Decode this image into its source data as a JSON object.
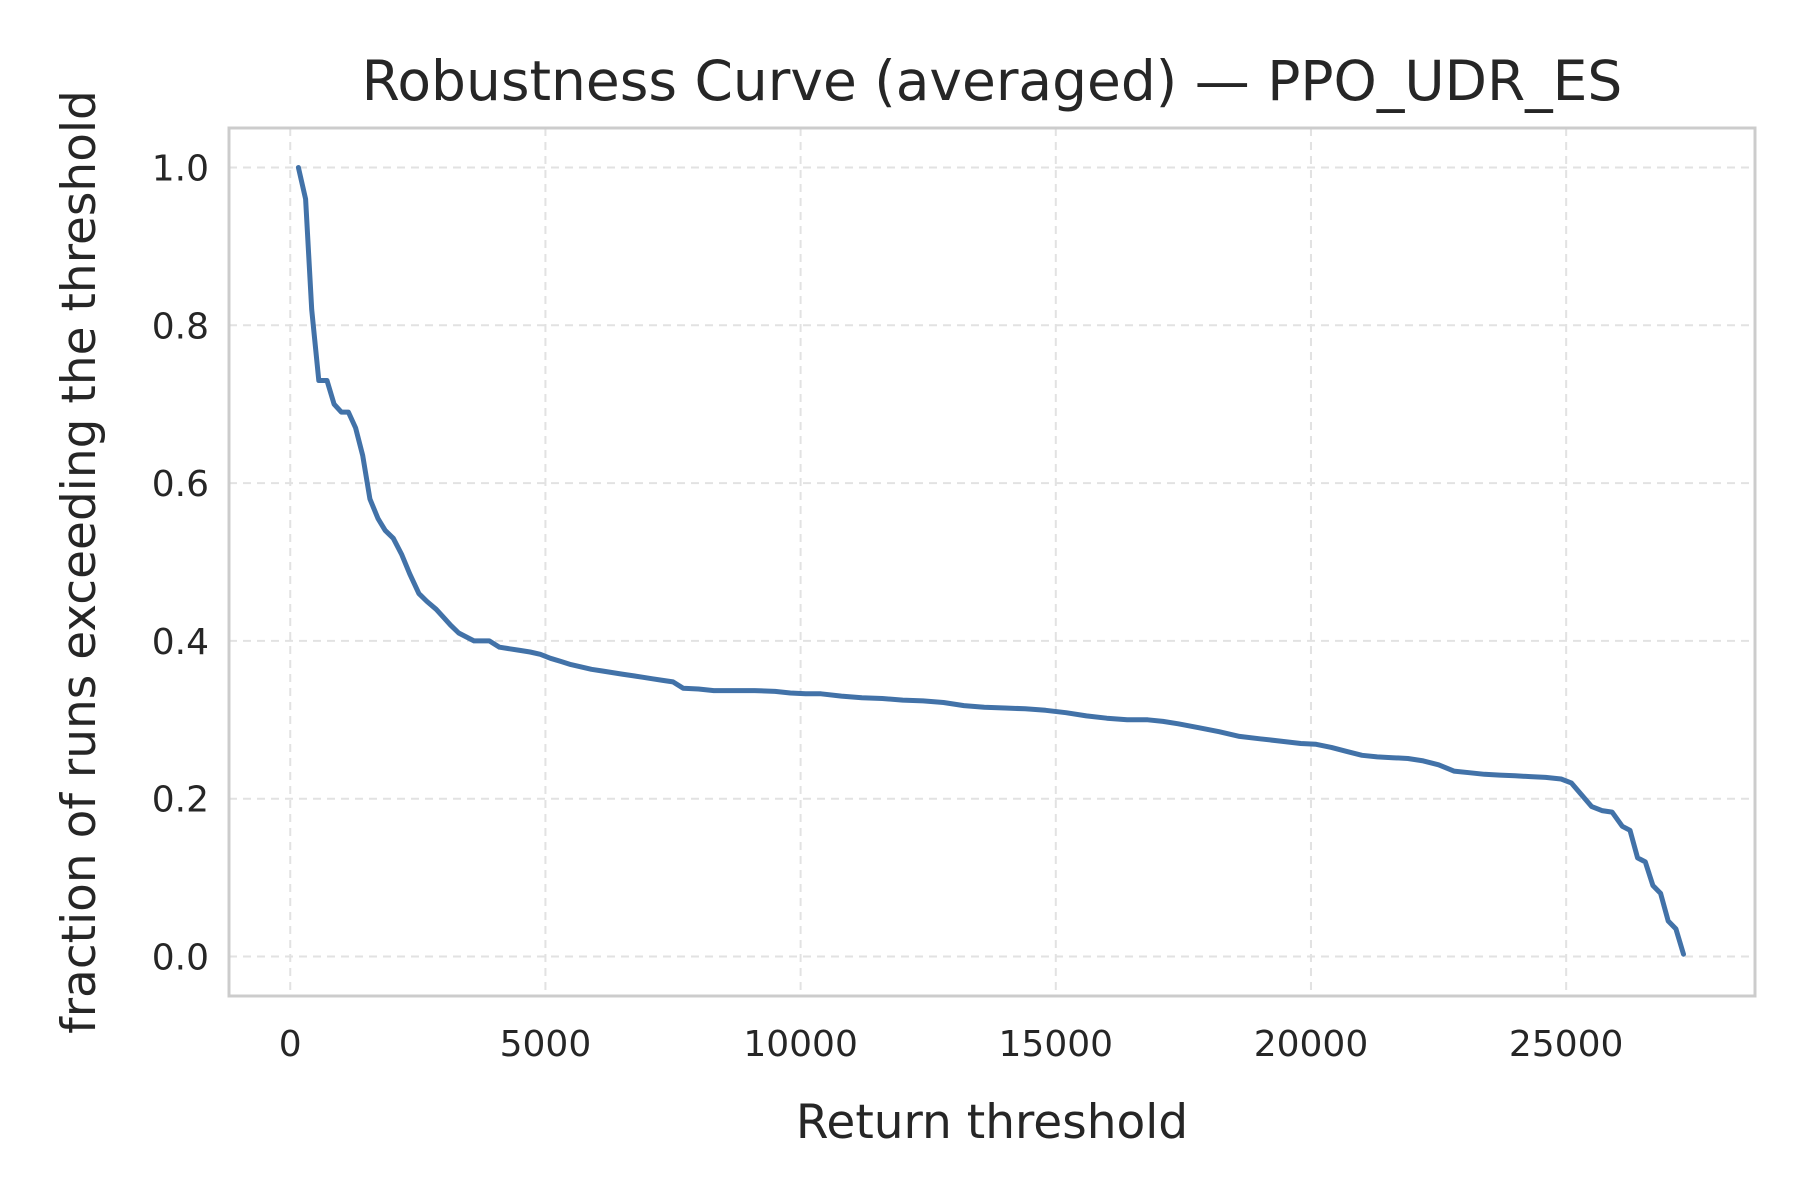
{
  "chart_data": {
    "type": "line",
    "title": "Robustness Curve (averaged) — PPO_UDR_ES",
    "xlabel": "Return threshold",
    "ylabel": "fraction of runs exceeding the threshold",
    "xlim": [
      -1200,
      28700
    ],
    "ylim": [
      -0.05,
      1.05
    ],
    "xticks": [
      0,
      5000,
      10000,
      15000,
      20000,
      25000
    ],
    "xtick_labels": [
      "0",
      "5000",
      "10000",
      "15000",
      "20000",
      "25000"
    ],
    "yticks": [
      0.0,
      0.2,
      0.4,
      0.6,
      0.8,
      1.0
    ],
    "ytick_labels": [
      "0.0",
      "0.2",
      "0.4",
      "0.6",
      "0.8",
      "1.0"
    ],
    "grid": true,
    "series": [
      {
        "color": "#4272a8",
        "x": [
          160,
          300,
          420,
          560,
          720,
          860,
          1000,
          1140,
          1280,
          1420,
          1560,
          1720,
          1860,
          2020,
          2180,
          2340,
          2520,
          2680,
          2860,
          3000,
          3140,
          3300,
          3600,
          3760,
          3900,
          4100,
          4300,
          4500,
          4700,
          4900,
          5100,
          5300,
          5500,
          5700,
          5900,
          6100,
          6300,
          6500,
          6700,
          6900,
          7100,
          7300,
          7500,
          7700,
          8000,
          8300,
          8700,
          9100,
          9500,
          9800,
          10100,
          10400,
          10800,
          11200,
          11600,
          12000,
          12400,
          12800,
          13200,
          13600,
          14000,
          14400,
          14800,
          15200,
          15600,
          16000,
          16400,
          16800,
          17100,
          17400,
          17800,
          18200,
          18600,
          19000,
          19400,
          19800,
          20100,
          20400,
          20700,
          21000,
          21300,
          21600,
          21900,
          22200,
          22500,
          22800,
          23100,
          23400,
          23700,
          24000,
          24300,
          24600,
          24900,
          25100,
          25300,
          25500,
          25700,
          25900,
          26100,
          26250,
          26400,
          26550,
          26700,
          26850,
          27000,
          27150,
          27300
        ],
        "y": [
          1.0,
          0.96,
          0.82,
          0.73,
          0.73,
          0.7,
          0.69,
          0.69,
          0.67,
          0.635,
          0.58,
          0.555,
          0.54,
          0.53,
          0.51,
          0.485,
          0.46,
          0.45,
          0.44,
          0.43,
          0.42,
          0.41,
          0.4,
          0.4,
          0.4,
          0.392,
          0.39,
          0.388,
          0.386,
          0.383,
          0.378,
          0.374,
          0.37,
          0.367,
          0.364,
          0.362,
          0.36,
          0.358,
          0.356,
          0.354,
          0.352,
          0.35,
          0.348,
          0.34,
          0.339,
          0.337,
          0.337,
          0.337,
          0.336,
          0.334,
          0.333,
          0.333,
          0.33,
          0.328,
          0.327,
          0.325,
          0.324,
          0.322,
          0.318,
          0.316,
          0.315,
          0.314,
          0.312,
          0.309,
          0.305,
          0.302,
          0.3,
          0.3,
          0.298,
          0.295,
          0.29,
          0.285,
          0.279,
          0.276,
          0.273,
          0.27,
          0.269,
          0.265,
          0.26,
          0.255,
          0.253,
          0.252,
          0.251,
          0.248,
          0.243,
          0.235,
          0.233,
          0.231,
          0.23,
          0.229,
          0.228,
          0.227,
          0.225,
          0.22,
          0.205,
          0.19,
          0.185,
          0.183,
          0.165,
          0.16,
          0.125,
          0.12,
          0.09,
          0.08,
          0.045,
          0.035,
          0.003
        ]
      }
    ]
  }
}
